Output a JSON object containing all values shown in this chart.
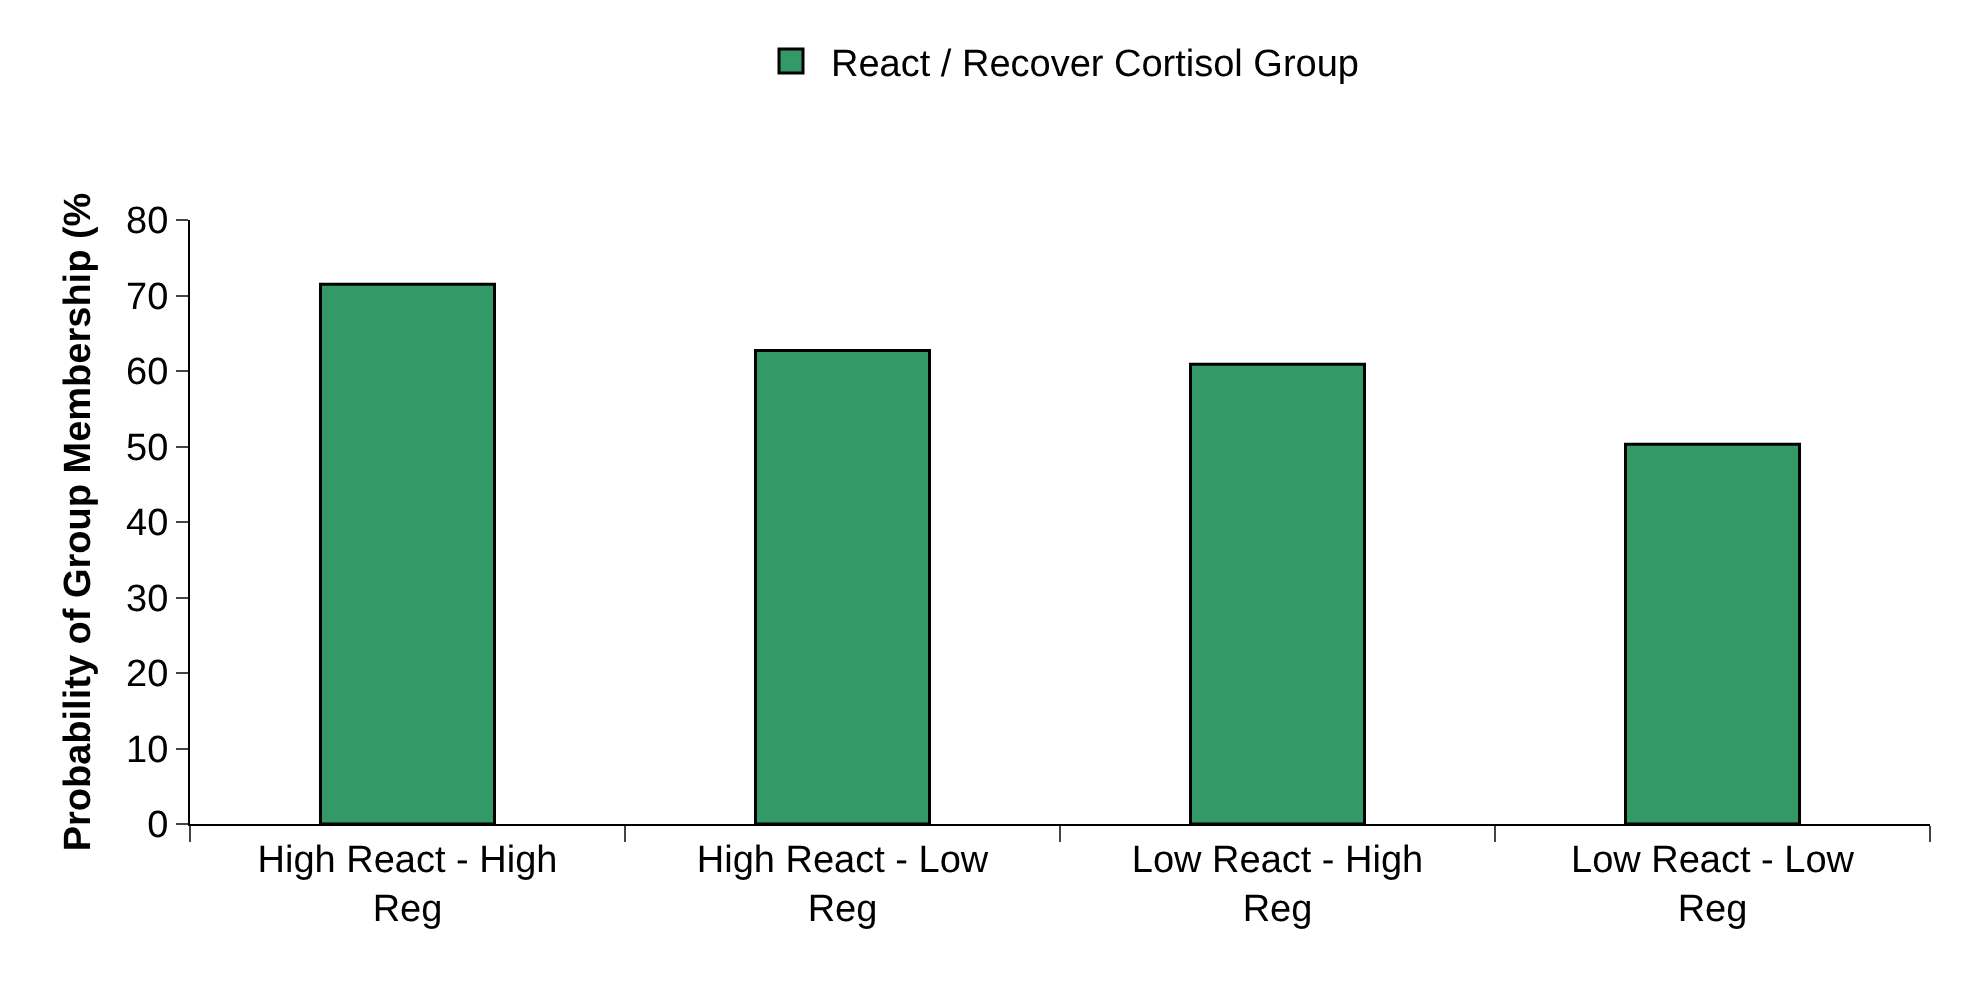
{
  "chart_data": {
    "type": "bar",
    "ylabel": "Probability of Group Membership (%",
    "categories": [
      "High React - High Reg",
      "High React - Low Reg",
      "Low React - High Reg",
      "Low React - Low Reg"
    ],
    "series": [
      {
        "name": "React / Recover Cortisol Group",
        "color": "#339966",
        "values": [
          71.5,
          62.7,
          60.9,
          50.3
        ]
      }
    ],
    "ylim": [
      0,
      80
    ],
    "yticks": [
      0,
      10,
      20,
      30,
      40,
      50,
      60,
      70,
      80
    ],
    "legend": "top"
  }
}
